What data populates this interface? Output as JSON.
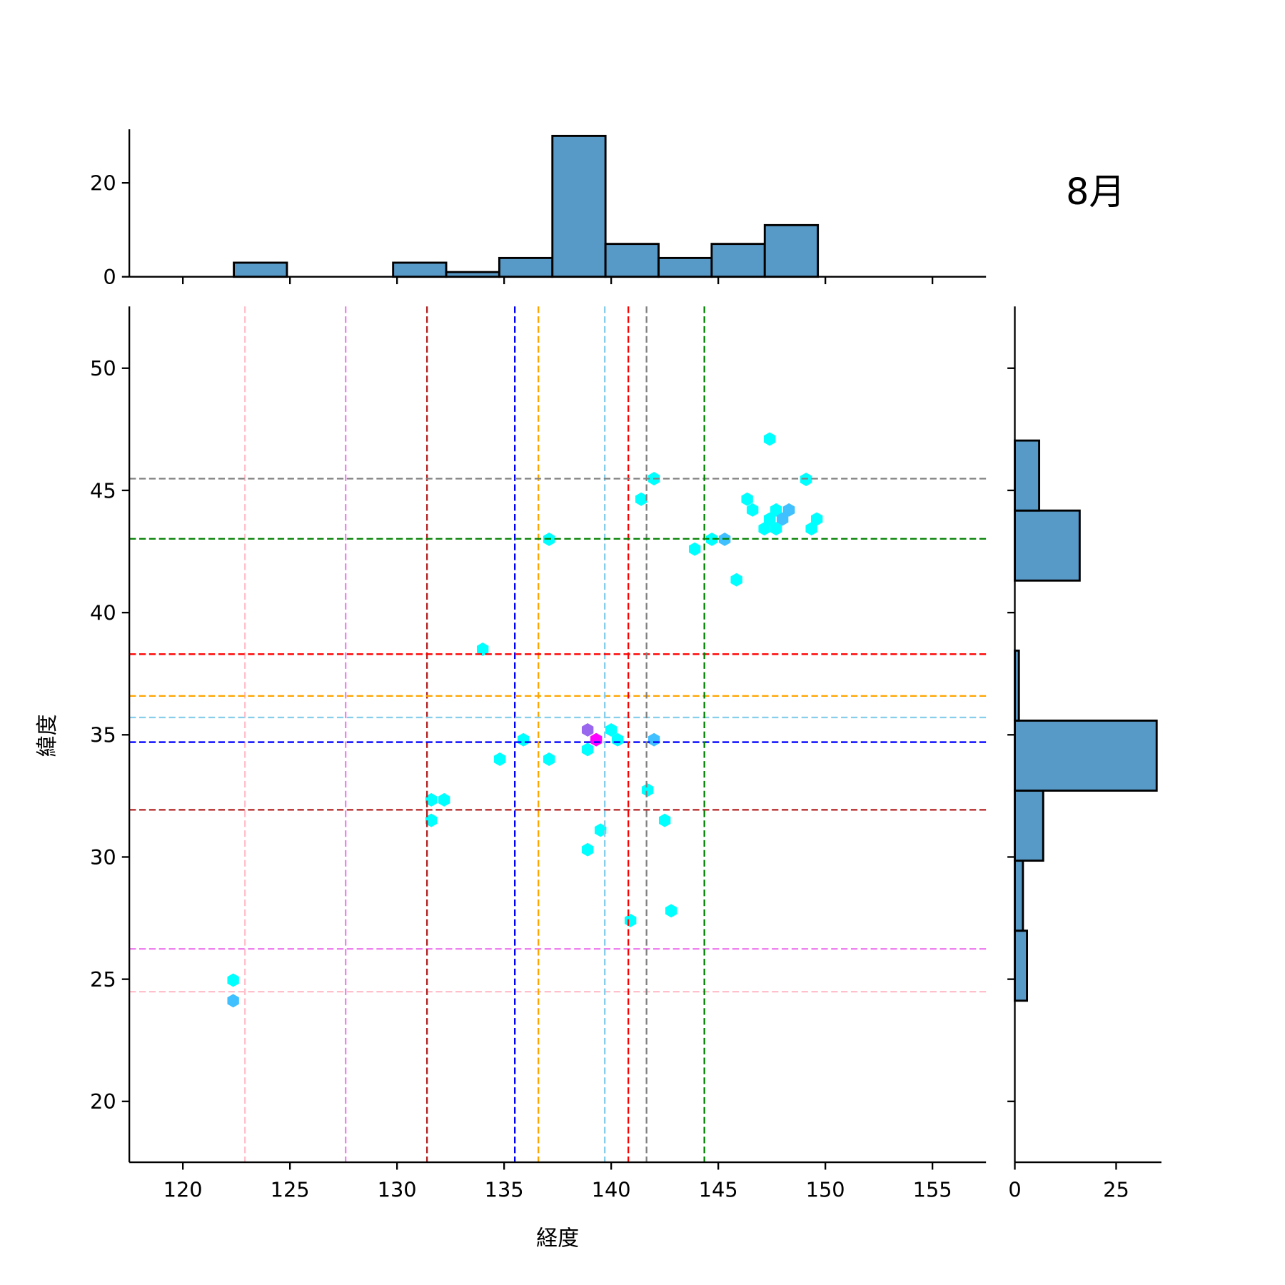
{
  "chart_data": {
    "type": "hexbin-jointplot",
    "title": "8月",
    "xlabel": "経度",
    "ylabel": "緯度",
    "xlim": [
      117.5,
      157.5
    ],
    "ylim": [
      17.5,
      52.5
    ],
    "xticks": [
      120,
      125,
      130,
      135,
      140,
      145,
      150,
      155
    ],
    "yticks": [
      20,
      25,
      30,
      35,
      40,
      45,
      50
    ],
    "top_hist": {
      "ylim": [
        0,
        31.5
      ],
      "yticks": [
        0,
        20
      ],
      "bin_start": 122.38,
      "bin_width": 2.479,
      "counts": [
        3,
        0,
        0,
        3,
        1,
        4,
        30,
        7,
        4,
        7,
        11
      ]
    },
    "right_hist": {
      "xlim": [
        0,
        36.2
      ],
      "xticks": [
        0,
        25
      ],
      "bin_start": 24.12,
      "bin_width": 2.865,
      "counts": [
        3,
        2,
        7,
        35,
        1,
        0,
        16,
        6
      ]
    },
    "hex_colors": {
      "1": "#00ffff",
      "2": "#40c0ff",
      "3": "#9966ee",
      "4": "#ff00ff"
    },
    "hexbins": [
      {
        "lon": 147.4,
        "lat": 47.1,
        "count": 1
      },
      {
        "lon": 149.1,
        "lat": 45.45,
        "count": 1
      },
      {
        "lon": 142.0,
        "lat": 45.48,
        "count": 1
      },
      {
        "lon": 141.4,
        "lat": 44.64,
        "count": 1
      },
      {
        "lon": 146.35,
        "lat": 44.64,
        "count": 1
      },
      {
        "lon": 146.6,
        "lat": 44.2,
        "count": 1
      },
      {
        "lon": 147.7,
        "lat": 44.2,
        "count": 1
      },
      {
        "lon": 148.3,
        "lat": 44.2,
        "count": 2
      },
      {
        "lon": 148.0,
        "lat": 43.83,
        "count": 2
      },
      {
        "lon": 147.4,
        "lat": 43.83,
        "count": 1
      },
      {
        "lon": 149.6,
        "lat": 43.83,
        "count": 1
      },
      {
        "lon": 147.15,
        "lat": 43.43,
        "count": 1
      },
      {
        "lon": 147.7,
        "lat": 43.43,
        "count": 1
      },
      {
        "lon": 149.35,
        "lat": 43.43,
        "count": 1
      },
      {
        "lon": 137.1,
        "lat": 43.0,
        "count": 1
      },
      {
        "lon": 144.7,
        "lat": 43.0,
        "count": 1
      },
      {
        "lon": 145.3,
        "lat": 43.0,
        "count": 2
      },
      {
        "lon": 143.9,
        "lat": 42.6,
        "count": 1
      },
      {
        "lon": 145.85,
        "lat": 41.34,
        "count": 1
      },
      {
        "lon": 134.0,
        "lat": 38.5,
        "count": 1
      },
      {
        "lon": 138.9,
        "lat": 35.2,
        "count": 3
      },
      {
        "lon": 140.0,
        "lat": 35.2,
        "count": 1
      },
      {
        "lon": 139.3,
        "lat": 34.8,
        "count": 4
      },
      {
        "lon": 140.3,
        "lat": 34.8,
        "count": 1
      },
      {
        "lon": 135.9,
        "lat": 34.8,
        "count": 1
      },
      {
        "lon": 142.0,
        "lat": 34.8,
        "count": 2
      },
      {
        "lon": 138.9,
        "lat": 34.4,
        "count": 1
      },
      {
        "lon": 134.8,
        "lat": 34.0,
        "count": 1
      },
      {
        "lon": 137.1,
        "lat": 34.0,
        "count": 1
      },
      {
        "lon": 141.7,
        "lat": 32.74,
        "count": 1
      },
      {
        "lon": 131.6,
        "lat": 32.34,
        "count": 1
      },
      {
        "lon": 132.2,
        "lat": 32.34,
        "count": 1
      },
      {
        "lon": 131.6,
        "lat": 31.5,
        "count": 1
      },
      {
        "lon": 142.5,
        "lat": 31.5,
        "count": 1
      },
      {
        "lon": 139.5,
        "lat": 31.1,
        "count": 1
      },
      {
        "lon": 138.9,
        "lat": 30.3,
        "count": 1
      },
      {
        "lon": 142.8,
        "lat": 27.8,
        "count": 1
      },
      {
        "lon": 140.9,
        "lat": 27.4,
        "count": 1
      },
      {
        "lon": 122.35,
        "lat": 24.96,
        "count": 1
      },
      {
        "lon": 122.35,
        "lat": 24.12,
        "count": 2
      }
    ],
    "reference_lines": [
      {
        "color": "#ffc0cb",
        "lon": 122.9,
        "lat": 24.49
      },
      {
        "color": "#ee82ee",
        "lon": 127.6,
        "lat": 26.24
      },
      {
        "color": "#b22222",
        "lon": 131.4,
        "lat": 31.93
      },
      {
        "color": "#0000ff",
        "lon": 135.5,
        "lat": 34.7
      },
      {
        "color": "#ffa500",
        "lon": 136.6,
        "lat": 36.59
      },
      {
        "color": "#87ceeb",
        "lon": 139.7,
        "lat": 35.71
      },
      {
        "color": "#ff0000",
        "lon": 140.8,
        "lat": 38.3
      },
      {
        "color": "#808080",
        "lon": 141.65,
        "lat": 45.48
      },
      {
        "color": "#008000",
        "lon": 144.35,
        "lat": 43.02
      }
    ],
    "bar_color": "#5799c7"
  }
}
